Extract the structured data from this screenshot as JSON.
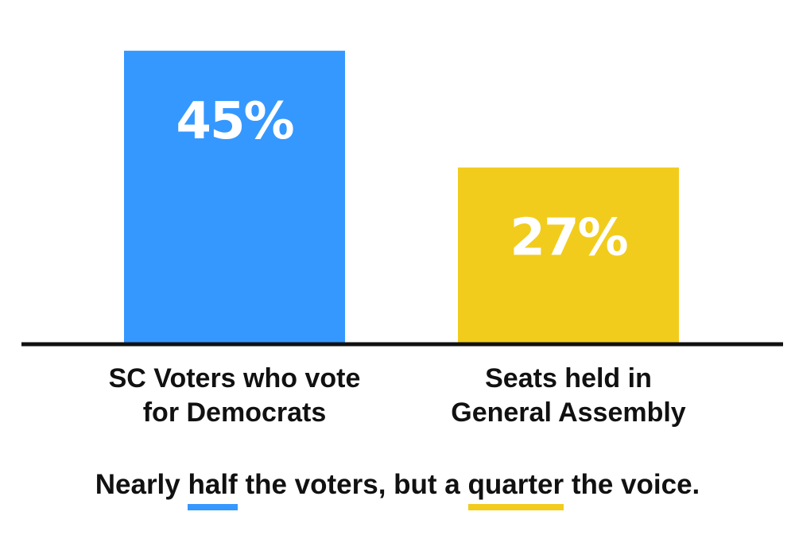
{
  "chart_data": {
    "type": "bar",
    "categories": [
      [
        "SC Voters who vote",
        "for Democrats"
      ],
      [
        "Seats held in",
        "General Assembly"
      ]
    ],
    "values": [
      45,
      27
    ],
    "value_labels": [
      "45%",
      "27%"
    ],
    "colors": [
      "#3598ff",
      "#f2cc1c"
    ],
    "ylim": [
      0,
      50
    ],
    "grid": false
  },
  "caption": {
    "part1": "Nearly ",
    "highlight1": "half",
    "part2": " the voters, but a ",
    "highlight2": "quarter",
    "part3": " the voice."
  }
}
